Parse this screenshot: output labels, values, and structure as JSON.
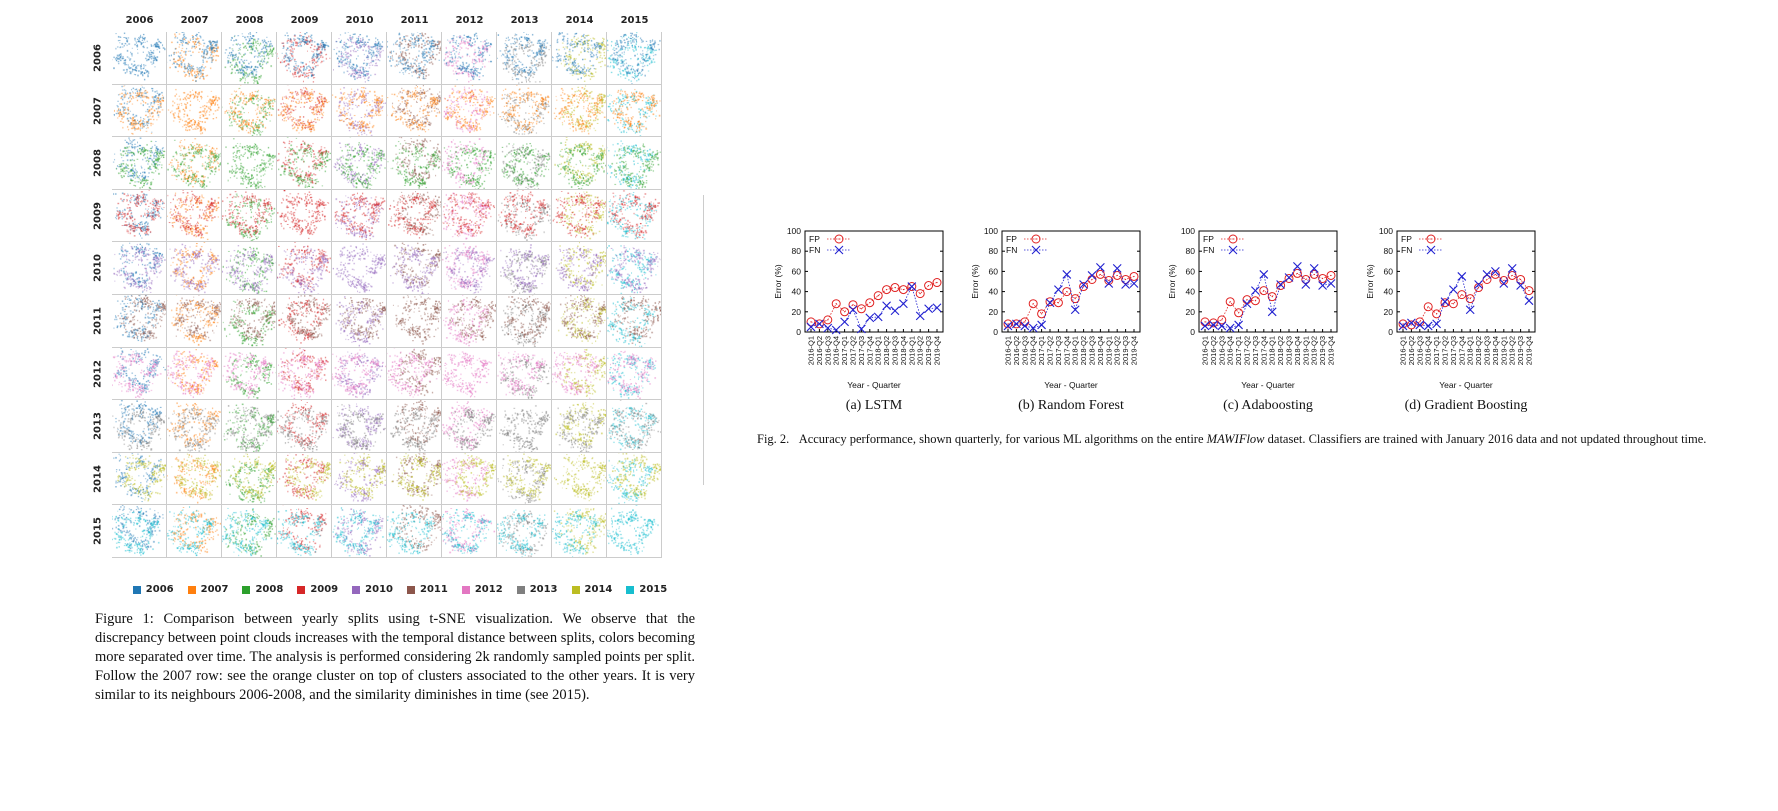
{
  "figure1": {
    "years": [
      "2006",
      "2007",
      "2008",
      "2009",
      "2010",
      "2011",
      "2012",
      "2013",
      "2014",
      "2015"
    ],
    "year_colors": {
      "2006": "#1f77b4",
      "2007": "#ff7f0e",
      "2008": "#2ca02c",
      "2009": "#d62728",
      "2010": "#9467bd",
      "2011": "#8c564b",
      "2012": "#e377c2",
      "2013": "#7f7f7f",
      "2014": "#bcbd22",
      "2015": "#17becf"
    },
    "plot_type": "t-SNE scatter grid",
    "caption_label": "Figure 1:",
    "caption": "Comparison between yearly splits using t-SNE visualization. We observe that the discrepancy between point clouds increases with the temporal distance between splits, colors becoming more separated over time. The analysis is performed considering 2k randomly sampled points per split. Follow the 2007 row: see the orange cluster on top of clusters associated to the other years. It is very similar to its neighbours 2006-2008, and the similarity diminishes in time (see 2015)."
  },
  "figure2": {
    "caption_label": "Fig. 2.",
    "caption_pre": "Accuracy performance, shown quarterly, for various ML algorithms on the entire ",
    "caption_dataset": "MAWIFlow",
    "caption_post": " dataset. Classifiers are trained with January 2016 data and not updated throughout time."
  },
  "chart_data": [
    {
      "type": "line",
      "subcaption": "(a) LSTM",
      "xlabel": "Year - Quarter",
      "ylabel": "Error (%)",
      "ylim": [
        0,
        100
      ],
      "yticks": [
        0,
        20,
        40,
        60,
        80,
        100
      ],
      "legend": "top-left",
      "categories": [
        "2016-Q1",
        "2016-Q2",
        "2016-Q3",
        "2016-Q4",
        "2017-Q1",
        "2017-Q2",
        "2017-Q3",
        "2017-Q4",
        "2018-Q1",
        "2018-Q2",
        "2018-Q3",
        "2018-Q4",
        "2019-Q1",
        "2019-Q2",
        "2019-Q3",
        "2019-Q4"
      ],
      "series": [
        {
          "name": "FP",
          "color": "#e02020",
          "marker": "circle",
          "values": [
            10,
            8,
            12,
            28,
            20,
            27,
            23,
            29,
            36,
            42,
            44,
            42,
            45,
            38,
            46,
            49
          ]
        },
        {
          "name": "FN",
          "color": "#2020d0",
          "marker": "x",
          "values": [
            5,
            8,
            4,
            2,
            10,
            22,
            3,
            14,
            15,
            26,
            21,
            28,
            45,
            16,
            23,
            24
          ]
        }
      ]
    },
    {
      "type": "line",
      "subcaption": "(b) Random Forest",
      "xlabel": "Year - Quarter",
      "ylabel": "Error (%)",
      "ylim": [
        0,
        100
      ],
      "yticks": [
        0,
        20,
        40,
        60,
        80,
        100
      ],
      "legend": "top-left",
      "categories": [
        "2016-Q1",
        "2016-Q2",
        "2016-Q3",
        "2016-Q4",
        "2017-Q1",
        "2017-Q2",
        "2017-Q3",
        "2017-Q4",
        "2018-Q1",
        "2018-Q2",
        "2018-Q3",
        "2018-Q4",
        "2019-Q1",
        "2019-Q2",
        "2019-Q3",
        "2019-Q4"
      ],
      "series": [
        {
          "name": "FP",
          "color": "#e02020",
          "marker": "circle",
          "values": [
            8,
            8,
            10,
            28,
            18,
            30,
            29,
            40,
            33,
            45,
            52,
            57,
            51,
            56,
            52,
            55
          ]
        },
        {
          "name": "FN",
          "color": "#2020d0",
          "marker": "x",
          "values": [
            6,
            8,
            6,
            4,
            7,
            29,
            42,
            57,
            22,
            47,
            56,
            64,
            48,
            63,
            47,
            48
          ]
        }
      ]
    },
    {
      "type": "line",
      "subcaption": "(c) Adaboosting",
      "xlabel": "Year - Quarter",
      "ylabel": "Error (%)",
      "ylim": [
        0,
        100
      ],
      "yticks": [
        0,
        20,
        40,
        60,
        80,
        100
      ],
      "legend": "top-left",
      "categories": [
        "2016-Q1",
        "2016-Q2",
        "2016-Q3",
        "2016-Q4",
        "2017-Q1",
        "2017-Q2",
        "2017-Q3",
        "2017-Q4",
        "2018-Q1",
        "2018-Q2",
        "2018-Q3",
        "2018-Q4",
        "2019-Q1",
        "2019-Q2",
        "2019-Q3",
        "2019-Q4"
      ],
      "series": [
        {
          "name": "FP",
          "color": "#e02020",
          "marker": "circle",
          "values": [
            10,
            9,
            12,
            30,
            19,
            32,
            31,
            41,
            35,
            46,
            53,
            58,
            52,
            57,
            53,
            56
          ]
        },
        {
          "name": "FN",
          "color": "#2020d0",
          "marker": "x",
          "values": [
            6,
            7,
            6,
            4,
            7,
            28,
            41,
            57,
            20,
            47,
            54,
            65,
            47,
            63,
            46,
            48
          ]
        }
      ]
    },
    {
      "type": "line",
      "subcaption": "(d) Gradient Boosting",
      "xlabel": "Year - Quarter",
      "ylabel": "Error (%)",
      "ylim": [
        0,
        100
      ],
      "yticks": [
        0,
        20,
        40,
        60,
        80,
        100
      ],
      "legend": "top-left",
      "categories": [
        "2016-Q1",
        "2016-Q2",
        "2016-Q3",
        "2016-Q4",
        "2017-Q1",
        "2017-Q2",
        "2017-Q3",
        "2017-Q4",
        "2018-Q1",
        "2018-Q2",
        "2018-Q3",
        "2018-Q4",
        "2019-Q1",
        "2019-Q2",
        "2019-Q3",
        "2019-Q4"
      ],
      "series": [
        {
          "name": "FP",
          "color": "#e02020",
          "marker": "circle",
          "values": [
            8,
            7,
            10,
            25,
            18,
            29,
            28,
            37,
            33,
            44,
            52,
            57,
            51,
            56,
            52,
            41
          ]
        },
        {
          "name": "FN",
          "color": "#2020d0",
          "marker": "x",
          "values": [
            6,
            9,
            7,
            6,
            8,
            30,
            42,
            55,
            22,
            47,
            57,
            60,
            48,
            63,
            46,
            31
          ]
        }
      ]
    }
  ]
}
